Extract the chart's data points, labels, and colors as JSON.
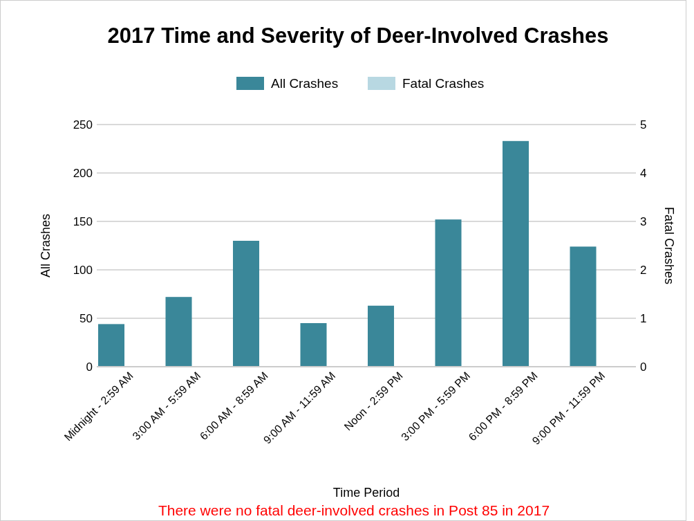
{
  "chart_data": {
    "type": "bar",
    "title": "2017 Time and Severity of Deer-Involved Crashes",
    "xlabel": "Time Period",
    "ylabel": "All Crashes",
    "y2label": "Fatal Crashes",
    "categories": [
      "Midnight - 2:59 AM",
      "3:00 AM - 5:59 AM",
      "6:00 AM - 8:59 AM",
      "9:00 AM - 11:59 AM",
      "Noon - 2:59 PM",
      "3:00 PM - 5:59 PM",
      "6:00 PM - 8:59 PM",
      "9:00 PM - 11:59 PM"
    ],
    "series": [
      {
        "name": "All Crashes",
        "color": "#3a8799",
        "values": [
          44,
          72,
          130,
          45,
          63,
          152,
          233,
          124
        ]
      },
      {
        "name": "Fatal Crashes",
        "color": "#b8d8e2",
        "axis": "y2",
        "values": [
          0,
          0,
          0,
          0,
          0,
          0,
          0,
          0
        ]
      }
    ],
    "ylim": [
      0,
      250
    ],
    "yticks": [
      0,
      50,
      100,
      150,
      200,
      250
    ],
    "y2lim": [
      0,
      5
    ],
    "y2ticks": [
      0,
      1,
      2,
      3,
      4,
      5
    ],
    "grid": "y",
    "legend": "top",
    "annotations": [
      "There were no fatal deer-involved crashes in Post 85 in 2017"
    ]
  }
}
